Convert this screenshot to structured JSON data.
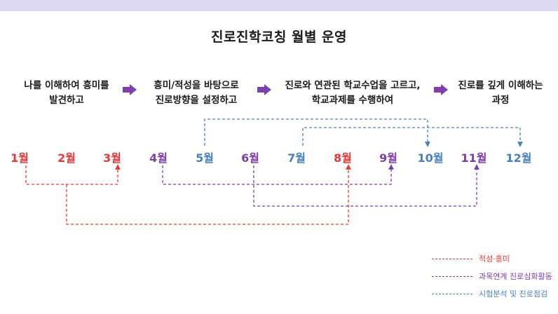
{
  "title": "진로진학코칭 월별 운영",
  "steps": [
    {
      "line1": "나를 이해하여 흥미를",
      "line2": "발견하고"
    },
    {
      "line1": "흥미/적성을 바탕으로",
      "line2": "진로방향을 설정하고"
    },
    {
      "line1": "진로와 연관된 학교수업을 고르고,",
      "line2": "학교과제를 수행하여"
    },
    {
      "line1": "진로를 깊게 이해하는",
      "line2": "과정"
    }
  ],
  "months": [
    "1월",
    "2월",
    "3월",
    "4월",
    "5월",
    "6월",
    "7월",
    "8월",
    "9월",
    "10월",
    "11월",
    "12월"
  ],
  "colors": {
    "red": "#e03a3a",
    "purple": "#7b3fa8",
    "blue": "#4a7fbd",
    "arrow": "#7e3fa8",
    "topbar": "#dcd7f0"
  },
  "legend": [
    {
      "label": "적성·흥미",
      "color": "#e03a3a"
    },
    {
      "label": "과목연계 진로심화활동",
      "color": "#7b3fa8"
    },
    {
      "label": "시험분석 및 진로점검",
      "color": "#4a7fbd"
    }
  ]
}
